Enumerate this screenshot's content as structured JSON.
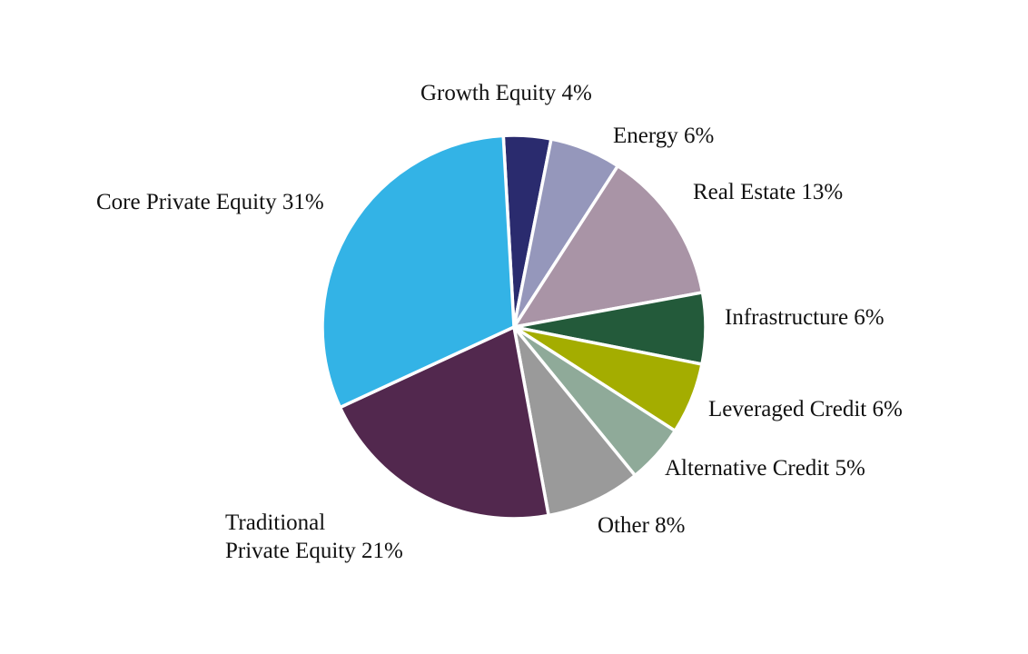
{
  "chart_data": {
    "type": "pie",
    "title": "",
    "slices": [
      {
        "name": "Growth Equity",
        "value": 4,
        "color": "#2a2b6e",
        "label_lines": [
          "Growth Equity 4%"
        ]
      },
      {
        "name": "Energy",
        "value": 6,
        "color": "#9597bb",
        "label_lines": [
          "Energy 6%"
        ]
      },
      {
        "name": "Real Estate",
        "value": 13,
        "color": "#a994a6",
        "label_lines": [
          "Real Estate 13%"
        ]
      },
      {
        "name": "Infrastructure",
        "value": 6,
        "color": "#235a3a",
        "label_lines": [
          "Infrastructure 6%"
        ]
      },
      {
        "name": "Leveraged Credit",
        "value": 6,
        "color": "#a4ad00",
        "label_lines": [
          "Leveraged Credit 6%"
        ]
      },
      {
        "name": "Alternative Credit",
        "value": 5,
        "color": "#8faa99",
        "label_lines": [
          "Alternative Credit 5%"
        ]
      },
      {
        "name": "Other",
        "value": 8,
        "color": "#9a9a9a",
        "label_lines": [
          "Other 8%"
        ]
      },
      {
        "name": "Traditional Private Equity",
        "value": 21,
        "color": "#52284e",
        "label_lines": [
          "Traditional",
          "Private Equity 21%"
        ]
      },
      {
        "name": "Core Private Equity",
        "value": 31,
        "color": "#33b3e6",
        "label_lines": [
          "Core Private Equity 31%"
        ]
      }
    ]
  }
}
